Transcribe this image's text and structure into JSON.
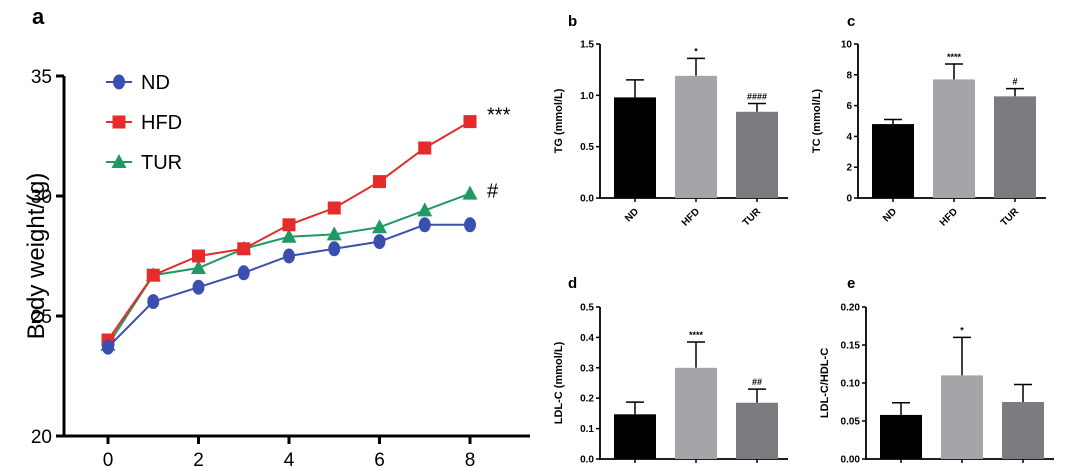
{
  "panel_letters": [
    "a",
    "b",
    "c",
    "d",
    "e"
  ],
  "colors": {
    "nd": "#3a4fb0",
    "hfd": "#e52b2b",
    "tur": "#1f9a66",
    "bar_nd": "#000000",
    "bar_hfd": "#a3a5a8",
    "bar_tur": "#7b7c7f",
    "axis": "#000000"
  },
  "chart_data": [
    {
      "panel": "a",
      "type": "line",
      "ylabel": "Body weight/(g)",
      "xlabel": "",
      "x": [
        0,
        1,
        2,
        3,
        4,
        5,
        6,
        7,
        8
      ],
      "x_ticks": [
        "0",
        "2",
        "4",
        "6",
        "8"
      ],
      "y_ticks": [
        "20",
        "25",
        "30",
        "35"
      ],
      "ylim": [
        20,
        35
      ],
      "series": [
        {
          "name": "ND",
          "marker": "circle",
          "values": [
            23.7,
            25.6,
            26.2,
            26.8,
            27.5,
            27.8,
            28.1,
            28.8,
            28.8
          ],
          "end_label": ""
        },
        {
          "name": "HFD",
          "marker": "square",
          "values": [
            24.0,
            26.7,
            27.5,
            27.8,
            28.8,
            29.5,
            30.6,
            32.0,
            33.1
          ],
          "end_label": "***"
        },
        {
          "name": "TUR",
          "marker": "triangle",
          "values": [
            23.8,
            26.7,
            27.0,
            27.8,
            28.3,
            28.4,
            28.7,
            29.4,
            30.1
          ],
          "end_label": "#"
        }
      ],
      "legend": "top-left"
    },
    {
      "panel": "b",
      "type": "bar",
      "ylabel": "TG (mmol/L)",
      "categories": [
        "ND",
        "HFD",
        "TUR"
      ],
      "values": [
        0.98,
        1.19,
        0.84
      ],
      "errors": [
        0.17,
        0.17,
        0.08
      ],
      "annotations": [
        "",
        "*",
        "####"
      ],
      "y_ticks": [
        "0.0",
        "0.5",
        "1.0",
        "1.5"
      ],
      "ylim": [
        0,
        1.5
      ]
    },
    {
      "panel": "c",
      "type": "bar",
      "ylabel": "TC (mmol/L)",
      "categories": [
        "ND",
        "HFD",
        "TUR"
      ],
      "values": [
        4.8,
        7.7,
        6.6
      ],
      "errors": [
        0.3,
        1.0,
        0.5
      ],
      "annotations": [
        "",
        "****",
        "#"
      ],
      "y_ticks": [
        "0",
        "2",
        "4",
        "6",
        "8",
        "10"
      ],
      "ylim": [
        0,
        10
      ]
    },
    {
      "panel": "d",
      "type": "bar",
      "ylabel": "LDL-C (mmol/L)",
      "categories": [
        "ND",
        "HFD",
        "TUR"
      ],
      "values": [
        0.147,
        0.3,
        0.185
      ],
      "errors": [
        0.04,
        0.085,
        0.045
      ],
      "annotations": [
        "",
        "****",
        "##"
      ],
      "y_ticks": [
        "0.0",
        "0.1",
        "0.2",
        "0.3",
        "0.4",
        "0.5"
      ],
      "ylim": [
        0,
        0.5
      ]
    },
    {
      "panel": "e",
      "type": "bar",
      "ylabel": "LDL-C/HDL-C",
      "categories": [
        "ND",
        "HFD",
        "TUR"
      ],
      "values": [
        0.058,
        0.11,
        0.075
      ],
      "errors": [
        0.016,
        0.05,
        0.023
      ],
      "annotations": [
        "",
        "*",
        ""
      ],
      "y_ticks": [
        "0.00",
        "0.05",
        "0.10",
        "0.15",
        "0.20"
      ],
      "ylim": [
        0,
        0.2
      ]
    }
  ]
}
